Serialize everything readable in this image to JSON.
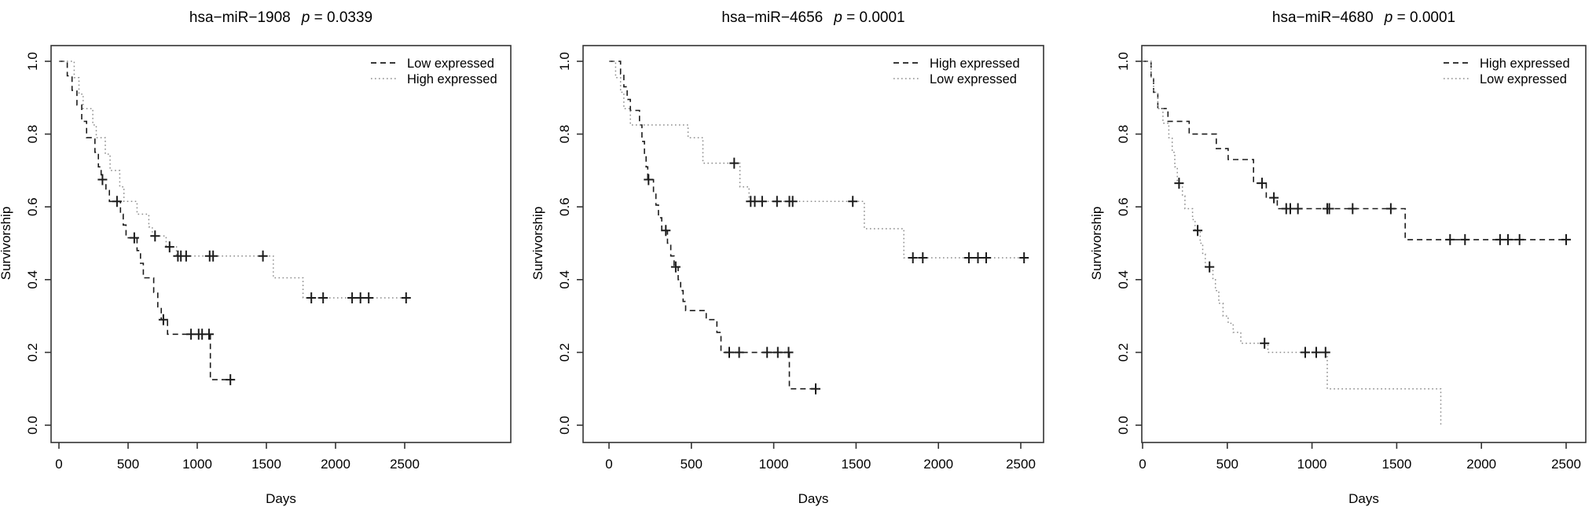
{
  "figure": {
    "xlabel": "Days",
    "ylabel": "Survivorship",
    "xticks": [
      0,
      500,
      1000,
      1500,
      2000,
      2500
    ],
    "ytick_labels": [
      "0.0",
      "0.2",
      "0.4",
      "0.6",
      "0.8",
      "1.0"
    ],
    "colors": {
      "dashed_line": "#1c1c1c",
      "dotted_line": "#8c8c8c",
      "censor": "#1c1c1c",
      "axis": "#333333"
    }
  },
  "chart_data": [
    {
      "type": "line",
      "title": "hsa−miR−1908",
      "p_symbol": "p",
      "p_value": "0.0339",
      "xlabel": "Days",
      "ylabel": "Survivorship",
      "xlim": [
        0,
        2600
      ],
      "ylim": [
        0.0,
        1.0
      ],
      "xticks": [
        0,
        500,
        1000,
        1500,
        2000,
        2500
      ],
      "ytick_labels": [
        "0.0",
        "0.2",
        "0.4",
        "0.6",
        "0.8",
        "1.0"
      ],
      "grid": false,
      "legend_position": "top-right",
      "legend": [
        {
          "label": "Low expressed",
          "style": "dashed"
        },
        {
          "label": "High expressed",
          "style": "dotted"
        }
      ],
      "series": [
        {
          "name": "Low expressed",
          "style": "dashed",
          "steps": [
            [
              0,
              1.0
            ],
            [
              60,
              0.96
            ],
            [
              95,
              0.92
            ],
            [
              130,
              0.88
            ],
            [
              165,
              0.835
            ],
            [
              200,
              0.79
            ],
            [
              260,
              0.75
            ],
            [
              285,
              0.71
            ],
            [
              305,
              0.675
            ],
            [
              340,
              0.645
            ],
            [
              365,
              0.615
            ],
            [
              445,
              0.58
            ],
            [
              465,
              0.55
            ],
            [
              485,
              0.515
            ],
            [
              565,
              0.48
            ],
            [
              590,
              0.445
            ],
            [
              610,
              0.405
            ],
            [
              685,
              0.365
            ],
            [
              715,
              0.325
            ],
            [
              740,
              0.29
            ],
            [
              785,
              0.25
            ],
            [
              1095,
              0.125
            ]
          ],
          "censors": [
            [
              315,
              0.675
            ],
            [
              420,
              0.615
            ],
            [
              545,
              0.515
            ],
            [
              755,
              0.29
            ],
            [
              955,
              0.25
            ],
            [
              1010,
              0.25
            ],
            [
              1035,
              0.25
            ],
            [
              1085,
              0.25
            ],
            [
              1240,
              0.125
            ]
          ],
          "end": 1265
        },
        {
          "name": "High expressed",
          "style": "dotted",
          "steps": [
            [
              0,
              1.0
            ],
            [
              110,
              0.955
            ],
            [
              145,
              0.91
            ],
            [
              175,
              0.87
            ],
            [
              245,
              0.825
            ],
            [
              270,
              0.79
            ],
            [
              335,
              0.745
            ],
            [
              370,
              0.7
            ],
            [
              440,
              0.655
            ],
            [
              470,
              0.615
            ],
            [
              565,
              0.58
            ],
            [
              650,
              0.545
            ],
            [
              675,
              0.52
            ],
            [
              775,
              0.49
            ],
            [
              850,
              0.465
            ],
            [
              1550,
              0.405
            ],
            [
              1765,
              0.35
            ]
          ],
          "censors": [
            [
              695,
              0.52
            ],
            [
              800,
              0.49
            ],
            [
              860,
              0.465
            ],
            [
              882,
              0.465
            ],
            [
              920,
              0.465
            ],
            [
              1090,
              0.465
            ],
            [
              1115,
              0.465
            ],
            [
              1475,
              0.465
            ],
            [
              1825,
              0.35
            ],
            [
              1910,
              0.35
            ],
            [
              2120,
              0.35
            ],
            [
              2180,
              0.35
            ],
            [
              2240,
              0.35
            ],
            [
              2510,
              0.35
            ]
          ],
          "end": 2530
        }
      ]
    },
    {
      "type": "line",
      "title": "hsa−miR−4656",
      "p_symbol": "p",
      "p_value": "0.0001",
      "xlabel": "Days",
      "ylabel": "Survivorship",
      "xlim": [
        0,
        2600
      ],
      "ylim": [
        0.0,
        1.0
      ],
      "xticks": [
        0,
        500,
        1000,
        1500,
        2000,
        2500
      ],
      "ytick_labels": [
        "0.0",
        "0.2",
        "0.4",
        "0.6",
        "0.8",
        "1.0"
      ],
      "grid": false,
      "legend_position": "top-right",
      "legend": [
        {
          "label": "High expressed",
          "style": "dashed"
        },
        {
          "label": "Low expressed",
          "style": "dotted"
        }
      ],
      "series": [
        {
          "name": "High expressed",
          "style": "dashed",
          "steps": [
            [
              0,
              1.0
            ],
            [
              70,
              0.965
            ],
            [
              90,
              0.93
            ],
            [
              110,
              0.895
            ],
            [
              130,
              0.865
            ],
            [
              185,
              0.825
            ],
            [
              200,
              0.78
            ],
            [
              215,
              0.74
            ],
            [
              225,
              0.71
            ],
            [
              235,
              0.675
            ],
            [
              270,
              0.64
            ],
            [
              285,
              0.605
            ],
            [
              300,
              0.57
            ],
            [
              320,
              0.535
            ],
            [
              355,
              0.5
            ],
            [
              375,
              0.465
            ],
            [
              395,
              0.435
            ],
            [
              420,
              0.4
            ],
            [
              435,
              0.37
            ],
            [
              450,
              0.34
            ],
            [
              465,
              0.315
            ],
            [
              590,
              0.29
            ],
            [
              655,
              0.255
            ],
            [
              680,
              0.2
            ],
            [
              1095,
              0.1
            ]
          ],
          "censors": [
            [
              240,
              0.675
            ],
            [
              345,
              0.535
            ],
            [
              405,
              0.435
            ],
            [
              730,
              0.2
            ],
            [
              790,
              0.2
            ],
            [
              960,
              0.2
            ],
            [
              1025,
              0.2
            ],
            [
              1090,
              0.2
            ],
            [
              1255,
              0.1
            ]
          ],
          "end": 1270
        },
        {
          "name": "Low expressed",
          "style": "dotted",
          "steps": [
            [
              0,
              1.0
            ],
            [
              40,
              0.955
            ],
            [
              70,
              0.915
            ],
            [
              90,
              0.87
            ],
            [
              130,
              0.825
            ],
            [
              480,
              0.79
            ],
            [
              570,
              0.72
            ],
            [
              795,
              0.655
            ],
            [
              850,
              0.615
            ],
            [
              1550,
              0.54
            ],
            [
              1790,
              0.46
            ]
          ],
          "censors": [
            [
              760,
              0.72
            ],
            [
              860,
              0.615
            ],
            [
              885,
              0.615
            ],
            [
              930,
              0.615
            ],
            [
              1020,
              0.615
            ],
            [
              1095,
              0.615
            ],
            [
              1115,
              0.615
            ],
            [
              1480,
              0.615
            ],
            [
              1845,
              0.46
            ],
            [
              1905,
              0.46
            ],
            [
              2185,
              0.46
            ],
            [
              2240,
              0.46
            ],
            [
              2290,
              0.46
            ],
            [
              2520,
              0.46
            ]
          ],
          "end": 2530
        }
      ]
    },
    {
      "type": "line",
      "title": "hsa−miR−4680",
      "p_symbol": "p",
      "p_value": "0.0001",
      "xlabel": "Days",
      "ylabel": "Survivorship",
      "xlim": [
        0,
        2600
      ],
      "ylim": [
        0.0,
        1.0
      ],
      "xticks": [
        0,
        500,
        1000,
        1500,
        2000,
        2500
      ],
      "ytick_labels": [
        "0.0",
        "0.2",
        "0.4",
        "0.6",
        "0.8",
        "1.0"
      ],
      "grid": false,
      "legend_position": "top-right",
      "legend": [
        {
          "label": "High expressed",
          "style": "dashed"
        },
        {
          "label": "Low expressed",
          "style": "dotted"
        }
      ],
      "series": [
        {
          "name": "High expressed",
          "style": "dashed",
          "steps": [
            [
              0,
              1.0
            ],
            [
              50,
              0.955
            ],
            [
              65,
              0.915
            ],
            [
              90,
              0.87
            ],
            [
              150,
              0.835
            ],
            [
              275,
              0.8
            ],
            [
              435,
              0.76
            ],
            [
              505,
              0.73
            ],
            [
              655,
              0.665
            ],
            [
              730,
              0.625
            ],
            [
              795,
              0.595
            ],
            [
              1550,
              0.51
            ]
          ],
          "censors": [
            [
              705,
              0.665
            ],
            [
              775,
              0.625
            ],
            [
              848,
              0.595
            ],
            [
              872,
              0.595
            ],
            [
              917,
              0.595
            ],
            [
              1090,
              0.595
            ],
            [
              1102,
              0.595
            ],
            [
              1240,
              0.595
            ],
            [
              1465,
              0.595
            ],
            [
              1815,
              0.51
            ],
            [
              1903,
              0.51
            ],
            [
              2110,
              0.51
            ],
            [
              2157,
              0.51
            ],
            [
              2225,
              0.51
            ],
            [
              2500,
              0.51
            ]
          ],
          "end": 2520
        },
        {
          "name": "Low expressed",
          "style": "dotted",
          "steps": [
            [
              0,
              1.0
            ],
            [
              50,
              0.955
            ],
            [
              65,
              0.915
            ],
            [
              90,
              0.87
            ],
            [
              120,
              0.83
            ],
            [
              155,
              0.79
            ],
            [
              175,
              0.75
            ],
            [
              190,
              0.71
            ],
            [
              205,
              0.665
            ],
            [
              235,
              0.63
            ],
            [
              250,
              0.595
            ],
            [
              295,
              0.565
            ],
            [
              310,
              0.535
            ],
            [
              340,
              0.5
            ],
            [
              355,
              0.47
            ],
            [
              370,
              0.435
            ],
            [
              415,
              0.4
            ],
            [
              430,
              0.37
            ],
            [
              450,
              0.335
            ],
            [
              475,
              0.3
            ],
            [
              505,
              0.28
            ],
            [
              535,
              0.255
            ],
            [
              580,
              0.225
            ],
            [
              740,
              0.2
            ],
            [
              1090,
              0.1
            ],
            [
              1760,
              0.0
            ]
          ],
          "censors": [
            [
              215,
              0.665
            ],
            [
              325,
              0.535
            ],
            [
              395,
              0.435
            ],
            [
              720,
              0.225
            ],
            [
              960,
              0.2
            ],
            [
              1025,
              0.2
            ],
            [
              1080,
              0.2
            ]
          ],
          "end": 1760
        }
      ]
    }
  ]
}
